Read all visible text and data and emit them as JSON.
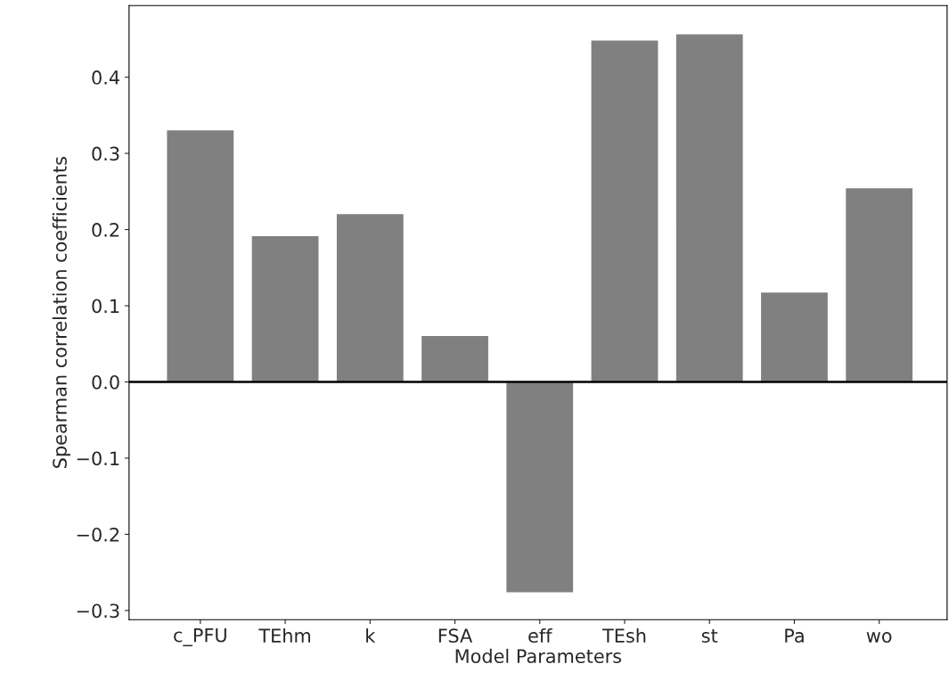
{
  "chart_data": {
    "type": "bar",
    "xlabel": "Model Parameters",
    "ylabel": "Spearman correlation coefficients",
    "categories": [
      "c_PFU",
      "TEhm",
      "k",
      "FSA",
      "eff",
      "TEsh",
      "st",
      "Pa",
      "wo"
    ],
    "values": [
      0.331,
      0.192,
      0.221,
      0.061,
      -0.277,
      0.449,
      0.457,
      0.118,
      0.255
    ],
    "color": "#808080",
    "ylim": [
      -0.312,
      0.494
    ],
    "yticks": [
      -0.3,
      -0.2,
      -0.1,
      {
        "value": 0,
        "label": "0.0"
      },
      0.1,
      0.2,
      0.3,
      0.4
    ],
    "ref_lines": [
      {
        "axis": "y",
        "value": 0.0,
        "color": "#000000"
      }
    ],
    "grid": false
  }
}
